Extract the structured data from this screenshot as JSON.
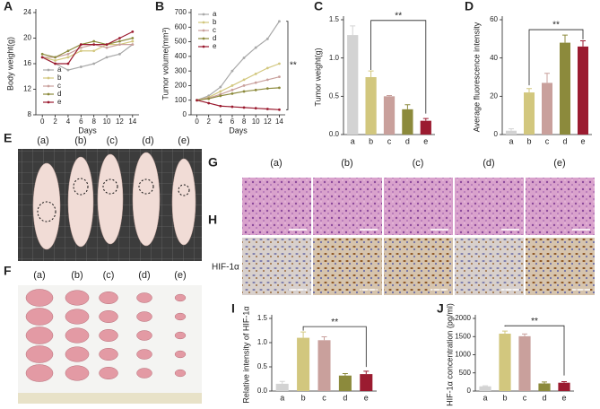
{
  "chart_data": [
    {
      "type": "line",
      "panel": "A",
      "ylabel": "Body weight(g)",
      "xlabel": "Days",
      "x": [
        0,
        2,
        4,
        6,
        8,
        10,
        12,
        14
      ],
      "xlim": [
        -1,
        15
      ],
      "xticks": [
        0,
        2,
        4,
        6,
        8,
        10,
        12,
        14
      ],
      "ylim": [
        8,
        24
      ],
      "yticks": [
        8,
        12,
        16,
        20,
        24
      ],
      "legend": "lower left",
      "series": [
        {
          "name": "a",
          "color": "#a9a9a9",
          "values": [
            17,
            16,
            15,
            15.5,
            16,
            17,
            17.5,
            19
          ]
        },
        {
          "name": "b",
          "color": "#d2c77e",
          "values": [
            17,
            16.5,
            17,
            18,
            18,
            19,
            19,
            19.5
          ]
        },
        {
          "name": "c",
          "color": "#c9a09c",
          "values": [
            17,
            17,
            17.5,
            18.5,
            19,
            18.5,
            19,
            19
          ]
        },
        {
          "name": "d",
          "color": "#8c8a3c",
          "values": [
            17.5,
            17,
            18,
            19,
            19.5,
            19,
            19.5,
            20
          ]
        },
        {
          "name": "e",
          "color": "#9b1b30",
          "values": [
            17,
            16,
            16,
            19,
            19,
            19,
            20,
            21
          ]
        }
      ]
    },
    {
      "type": "line",
      "panel": "B",
      "ylabel": "Tumor volume(mm³)",
      "xlabel": "Days",
      "annotation": "**",
      "x": [
        0,
        2,
        4,
        6,
        8,
        10,
        12,
        14
      ],
      "xlim": [
        -1,
        15
      ],
      "xticks": [
        0,
        2,
        4,
        6,
        8,
        10,
        12,
        14
      ],
      "ylim": [
        0,
        700
      ],
      "yticks": [
        0,
        100,
        200,
        300,
        400,
        500,
        600,
        700
      ],
      "legend": "upper left",
      "series": [
        {
          "name": "a",
          "color": "#a9a9a9",
          "values": [
            100,
            130,
            190,
            300,
            390,
            460,
            520,
            640
          ]
        },
        {
          "name": "b",
          "color": "#d2c77e",
          "values": [
            100,
            120,
            160,
            200,
            240,
            280,
            320,
            350
          ]
        },
        {
          "name": "c",
          "color": "#c9a09c",
          "values": [
            100,
            115,
            140,
            170,
            200,
            220,
            240,
            260
          ]
        },
        {
          "name": "d",
          "color": "#8c8a3c",
          "values": [
            100,
            110,
            130,
            145,
            160,
            170,
            180,
            185
          ]
        },
        {
          "name": "e",
          "color": "#9b1b30",
          "values": [
            100,
            80,
            60,
            55,
            50,
            45,
            40,
            35
          ]
        }
      ]
    },
    {
      "type": "bar",
      "panel": "C",
      "ylabel": "Tumor  weight(g)",
      "annotation": "**",
      "categories": [
        "a",
        "b",
        "c",
        "d",
        "e"
      ],
      "values": [
        1.3,
        0.75,
        0.5,
        0.33,
        0.18
      ],
      "errors": [
        0.12,
        0.08,
        0.01,
        0.06,
        0.03
      ],
      "colors": [
        "#d3d3d3",
        "#d2c77e",
        "#c9a09c",
        "#8c8a3c",
        "#9b1b30"
      ],
      "ylim": [
        0,
        1.5
      ],
      "yticks": [
        {
          "value": 0,
          "label": "0.0"
        },
        0.5,
        {
          "value": 1,
          "label": "1.0"
        },
        1.5
      ]
    },
    {
      "type": "bar",
      "panel": "D",
      "ylabel": "Average fluorescence intensity",
      "annotation": "**",
      "categories": [
        "a",
        "b",
        "c",
        "d",
        "e"
      ],
      "values": [
        2,
        22,
        27,
        48,
        46
      ],
      "errors": [
        1,
        2,
        5,
        4,
        3
      ],
      "colors": [
        "#d3d3d3",
        "#d2c77e",
        "#c9a09c",
        "#8c8a3c",
        "#9b1b30"
      ],
      "ylim": [
        0,
        60
      ],
      "yticks": [
        0,
        20,
        40,
        60
      ]
    },
    {
      "type": "bar",
      "panel": "I",
      "ylabel": "Relative intensity of HIF-1α",
      "annotation": "**",
      "categories": [
        "a",
        "b",
        "c",
        "d",
        "e"
      ],
      "values": [
        0.15,
        1.1,
        1.05,
        0.32,
        0.35
      ],
      "errors": [
        0.05,
        0.12,
        0.07,
        0.04,
        0.06
      ],
      "colors": [
        "#d3d3d3",
        "#d2c77e",
        "#c9a09c",
        "#8c8a3c",
        "#9b1b30"
      ],
      "ylim": [
        0,
        1.5
      ],
      "yticks": [
        {
          "value": 0,
          "label": "0.0"
        },
        0.5,
        {
          "value": 1,
          "label": "1.0"
        },
        1.5
      ]
    },
    {
      "type": "bar",
      "panel": "J",
      "ylabel": "HIF-1α concentration (pg/ml)",
      "annotation": "**",
      "categories": [
        "a",
        "b",
        "c",
        "d",
        "e"
      ],
      "values": [
        130,
        1580,
        1510,
        210,
        230
      ],
      "errors": [
        15,
        70,
        60,
        40,
        30
      ],
      "colors": [
        "#d3d3d3",
        "#d2c77e",
        "#c9a09c",
        "#8c8a3c",
        "#9b1b30"
      ],
      "ylim": [
        0,
        2000
      ],
      "yticks": [
        0,
        500,
        1000,
        1500,
        2000
      ]
    }
  ],
  "photos": {
    "E": {
      "panel": "E",
      "labels": [
        "(a)",
        "(b)",
        "(c)",
        "(d)",
        "(e)"
      ]
    },
    "F": {
      "panel": "F",
      "labels": [
        "(a)",
        "(b)",
        "(c)",
        "(d)",
        "(e)"
      ]
    },
    "G": {
      "panel": "G",
      "labels": [
        "(a)",
        "(b)",
        "(c)",
        "(d)",
        "(e)"
      ]
    },
    "H": {
      "panel": "H",
      "row_label": "HIF-1α"
    }
  }
}
